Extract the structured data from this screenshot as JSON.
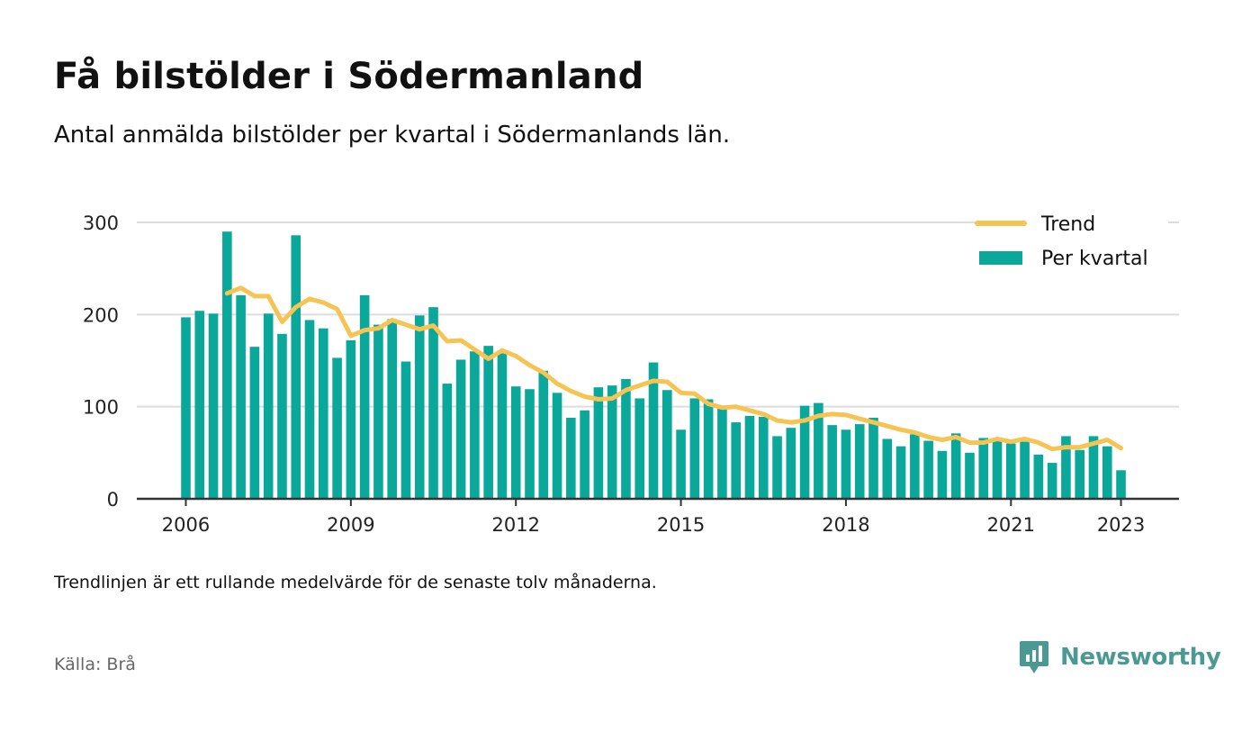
{
  "header": {
    "title": "Få bilstölder i Södermanland",
    "subtitle": "Antal anmälda bilstölder per kvartal i Södermanlands län."
  },
  "footer": {
    "note": "Trendlinjen är ett rullande medelvärde för de senaste tolv månaderna.",
    "source": "Källa: Brå",
    "brand": "Newsworthy"
  },
  "colors": {
    "bars": "#0aa89a",
    "trend": "#f5c453",
    "grid": "#dddddd",
    "axis": "#333333",
    "brand": "#4a9a93"
  },
  "icons": {
    "brand_logo": "newsworthy-logo-icon"
  },
  "chart_data": {
    "type": "bar",
    "ylim": [
      0,
      300
    ],
    "yticks": [
      0,
      100,
      200,
      300
    ],
    "xticks": [
      "2006",
      "2009",
      "2012",
      "2015",
      "2018",
      "2021",
      "2023"
    ],
    "grid": true,
    "legend_position": "top-right",
    "categories": [
      "2006 Q1",
      "2006 Q2",
      "2006 Q3",
      "2006 Q4",
      "2007 Q1",
      "2007 Q2",
      "2007 Q3",
      "2007 Q4",
      "2008 Q1",
      "2008 Q2",
      "2008 Q3",
      "2008 Q4",
      "2009 Q1",
      "2009 Q2",
      "2009 Q3",
      "2009 Q4",
      "2010 Q1",
      "2010 Q2",
      "2010 Q3",
      "2010 Q4",
      "2011 Q1",
      "2011 Q2",
      "2011 Q3",
      "2011 Q4",
      "2012 Q1",
      "2012 Q2",
      "2012 Q3",
      "2012 Q4",
      "2013 Q1",
      "2013 Q2",
      "2013 Q3",
      "2013 Q4",
      "2014 Q1",
      "2014 Q2",
      "2014 Q3",
      "2014 Q4",
      "2015 Q1",
      "2015 Q2",
      "2015 Q3",
      "2015 Q4",
      "2016 Q1",
      "2016 Q2",
      "2016 Q3",
      "2016 Q4",
      "2017 Q1",
      "2017 Q2",
      "2017 Q3",
      "2017 Q4",
      "2018 Q1",
      "2018 Q2",
      "2018 Q3",
      "2018 Q4",
      "2019 Q1",
      "2019 Q2",
      "2019 Q3",
      "2019 Q4",
      "2020 Q1",
      "2020 Q2",
      "2020 Q3",
      "2020 Q4",
      "2021 Q1",
      "2021 Q2",
      "2021 Q3",
      "2021 Q4",
      "2022 Q1",
      "2022 Q2",
      "2022 Q3",
      "2022 Q4",
      "2023 Q1"
    ],
    "series": [
      {
        "name": "Per kvartal",
        "type": "bar",
        "values": [
          197,
          204,
          201,
          290,
          221,
          165,
          201,
          179,
          286,
          194,
          185,
          153,
          172,
          221,
          189,
          195,
          149,
          199,
          208,
          125,
          151,
          160,
          166,
          158,
          122,
          119,
          139,
          115,
          88,
          96,
          121,
          123,
          130,
          109,
          148,
          118,
          75,
          109,
          108,
          98,
          83,
          90,
          89,
          68,
          77,
          101,
          104,
          80,
          75,
          81,
          88,
          65,
          57,
          70,
          63,
          52,
          71,
          50,
          66,
          66,
          60,
          62,
          48,
          39,
          68,
          53,
          68,
          57,
          31
        ]
      },
      {
        "name": "Trend",
        "type": "line",
        "values": [
          null,
          null,
          null,
          223,
          229,
          220,
          220,
          192,
          208,
          217,
          213,
          206,
          177,
          183,
          185,
          194,
          189,
          184,
          188,
          171,
          172,
          162,
          152,
          161,
          155,
          145,
          137,
          125,
          117,
          111,
          108,
          109,
          118,
          123,
          128,
          127,
          115,
          114,
          103,
          99,
          100,
          96,
          92,
          85,
          83,
          85,
          90,
          92,
          91,
          87,
          83,
          79,
          75,
          72,
          67,
          64,
          67,
          61,
          61,
          65,
          62,
          65,
          61,
          54,
          56,
          56,
          60,
          64,
          55
        ]
      }
    ]
  }
}
